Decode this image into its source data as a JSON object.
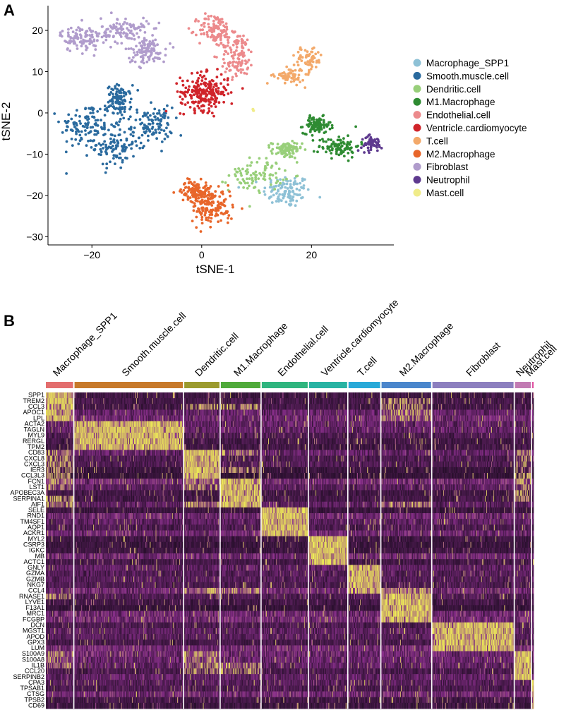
{
  "chart_data": [
    {
      "panel_label": "A",
      "type": "scatter",
      "xlabel": "tSNE-1",
      "ylabel": "tSNE-2",
      "xlim": [
        -28,
        35
      ],
      "ylim": [
        -32,
        26
      ],
      "xticks": [
        -20,
        0,
        20
      ],
      "yticks": [
        -30,
        -20,
        -10,
        0,
        10,
        20
      ],
      "legend_position": "right",
      "clusters": [
        {
          "name": "Macrophage_SPP1",
          "color": "#8ec1d6",
          "n": 110,
          "blobs": [
            [
              15.5,
              -19,
              3.5,
              3.2
            ]
          ]
        },
        {
          "name": "Smooth.muscle.cell",
          "color": "#2a6a9e",
          "n": 440,
          "blobs": [
            [
              -21,
              -3,
              3.8,
              4.5
            ],
            [
              -16,
              -8,
              3.2,
              4.5
            ],
            [
              -9,
              -3,
              3,
              3.5
            ],
            [
              -15,
              3,
              1.8,
              3
            ]
          ]
        },
        {
          "name": "Dendritic.cell",
          "color": "#98cf7a",
          "n": 180,
          "blobs": [
            [
              10,
              -15,
              4,
              3.2
            ],
            [
              15.5,
              -9,
              2.2,
              1.6
            ]
          ]
        },
        {
          "name": "M1.Macrophage",
          "color": "#2e8b32",
          "n": 190,
          "blobs": [
            [
              21,
              -3,
              2,
              1.6
            ],
            [
              25,
              -8,
              3,
              2.2
            ]
          ]
        },
        {
          "name": "Endothelial.cell",
          "color": "#ec8a8c",
          "n": 230,
          "blobs": [
            [
              2.5,
              20,
              2.5,
              3.2
            ],
            [
              6.5,
              14,
              2.5,
              4.5
            ]
          ]
        },
        {
          "name": "Ventricle.cardiomyocyte",
          "color": "#d0242a",
          "n": 230,
          "blobs": [
            [
              0.5,
              5,
              3.5,
              3.5
            ]
          ]
        },
        {
          "name": "T.cell",
          "color": "#f3a96a",
          "n": 130,
          "blobs": [
            [
              19.5,
              13,
              2,
              2.5
            ],
            [
              16,
              9,
              2.2,
              1.6
            ]
          ]
        },
        {
          "name": "M2.Macrophage",
          "color": "#e8662a",
          "n": 260,
          "blobs": [
            [
              2,
              -23,
              3,
              3.5
            ],
            [
              -1,
              -19,
              2.2,
              2
            ]
          ]
        },
        {
          "name": "Fibroblast",
          "color": "#b09ccc",
          "n": 330,
          "blobs": [
            [
              -22,
              18,
              3,
              2.5
            ],
            [
              -14,
              20,
              3.5,
              2.5
            ],
            [
              -10,
              15,
              2.8,
              2.5
            ]
          ]
        },
        {
          "name": "Neutrophil",
          "color": "#5e3a8f",
          "n": 55,
          "blobs": [
            [
              31,
              -7.5,
              1.5,
              1.5
            ]
          ]
        },
        {
          "name": "Mast.cell",
          "color": "#f0ec8a",
          "n": 4,
          "blobs": [
            [
              9.3,
              0.8,
              0.25,
              0.2
            ]
          ]
        }
      ]
    },
    {
      "panel_label": "B",
      "type": "heatmap",
      "groups": [
        {
          "name": "Macrophage_SPP1",
          "color": "#e36d6d",
          "n": 39
        },
        {
          "name": "Smooth.muscle.cell",
          "color": "#c7792a",
          "n": 153
        },
        {
          "name": "Dendritic.cell",
          "color": "#9b9a2e",
          "n": 51
        },
        {
          "name": "M1.Macrophage",
          "color": "#4faa3a",
          "n": 57
        },
        {
          "name": "Endothelial.cell",
          "color": "#2fb57e",
          "n": 66
        },
        {
          "name": "Ventricle.cardiomyocyte",
          "color": "#27b3a3",
          "n": 55
        },
        {
          "name": "T.cell",
          "color": "#28a9d8",
          "n": 46
        },
        {
          "name": "M2.Macrophage",
          "color": "#4a86cc",
          "n": 71
        },
        {
          "name": "Fibroblast",
          "color": "#8c7fbf",
          "n": 115
        },
        {
          "name": "Neutrophil",
          "color": "#c27bb3",
          "n": 24
        },
        {
          "name": "Mast.cell",
          "color": "#e04f9f",
          "n": 3
        }
      ],
      "genes": [
        "SPP1",
        "TREM2",
        "CCL3",
        "APOC1",
        "LPL",
        "ACTA2",
        "TAGLN",
        "MYL9",
        "RERGL",
        "TPM2",
        "CD83",
        "CXCL8",
        "CXCL3",
        "IER3",
        "CCL3L3",
        "FCN1",
        "LST1",
        "APOBEC3A",
        "SERPINA1",
        "AIF1",
        "SELE",
        "RND1",
        "TM4SF1",
        "AQP1",
        "ACKR1",
        "MYL2",
        "CSRP3",
        "IGKC",
        "MB",
        "ACTC1",
        "GNLY",
        "GZMA",
        "GZMB",
        "NKG7",
        "CCL4",
        "RNASE1",
        "LYVE1",
        "F13A1",
        "MRC1",
        "FCGBP",
        "DCN",
        "MGST1",
        "APOD",
        "GPX3",
        "LUM",
        "S100A9",
        "S100A8",
        "IL1B",
        "CCL20",
        "SERPINB2",
        "CPA3",
        "TPSAB1",
        "CTSG",
        "TPSB2",
        "CD69"
      ],
      "marker_gene_ranges": [
        [
          0,
          4
        ],
        [
          5,
          9
        ],
        [
          10,
          14
        ],
        [
          15,
          19
        ],
        [
          20,
          24
        ],
        [
          25,
          29
        ],
        [
          30,
          34
        ],
        [
          35,
          39
        ],
        [
          40,
          44
        ],
        [
          45,
          49
        ],
        [
          50,
          54
        ]
      ],
      "color_scale": [
        "#180a1c",
        "#8a2f8c",
        "#f0f055"
      ],
      "column_separator_color": "#ffffff"
    }
  ]
}
